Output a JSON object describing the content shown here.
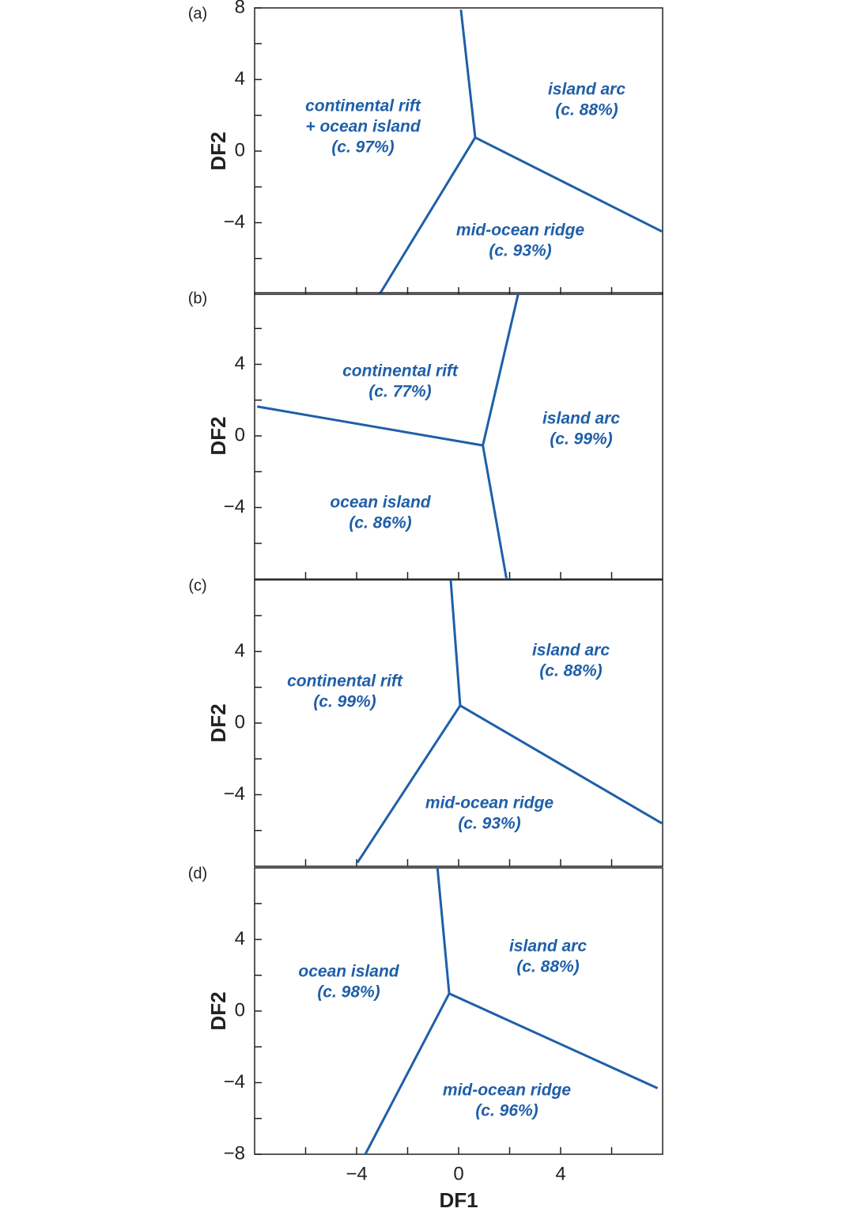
{
  "chart_data": [
    {
      "type": "line",
      "title": "(a)",
      "ylabel": "DF2",
      "color": "#1f5fa8",
      "xlim": [
        -8,
        8
      ],
      "ylim": [
        -8,
        8
      ],
      "xtickmarks": [
        -6,
        -4,
        -2,
        0,
        2,
        4,
        6
      ],
      "yticks": [
        8,
        4,
        0,
        {
          "value": -4,
          "label": "−4"
        }
      ],
      "ytickmarks": [
        -6,
        -2,
        2,
        6
      ],
      "lines": [
        {
          "x": [
            0.65,
            0.09
          ],
          "y": [
            0.76,
            7.9
          ]
        },
        {
          "x": [
            0.65,
            7.97
          ],
          "y": [
            0.76,
            -4.49
          ]
        },
        {
          "x": [
            0.65,
            -3.1
          ],
          "y": [
            0.76,
            -8
          ]
        }
      ],
      "regions": [
        [
          "continental rift",
          "+ ocean island",
          "(c. 97%)"
        ],
        [
          "island arc",
          "(c. 88%)"
        ],
        [
          "mid-ocean ridge",
          "(c. 93%)"
        ]
      ]
    },
    {
      "type": "line",
      "title": "(b)",
      "ylabel": "DF2",
      "color": "#1f5fa8",
      "xlim": [
        -8,
        8
      ],
      "ylim": [
        -8,
        8
      ],
      "xtickmarks": [
        -6,
        -4,
        -2,
        0,
        2,
        4,
        6
      ],
      "yticks": [
        4,
        0,
        {
          "value": -4,
          "label": "−4"
        }
      ],
      "ytickmarks": [
        -6,
        -2,
        2,
        6
      ],
      "lines": [
        {
          "x": [
            0.95,
            2.34
          ],
          "y": [
            -0.53,
            7.96
          ]
        },
        {
          "x": [
            0.95,
            -7.9
          ],
          "y": [
            -0.53,
            1.64
          ]
        },
        {
          "x": [
            0.95,
            1.88
          ],
          "y": [
            -0.53,
            -8
          ]
        }
      ],
      "regions": [
        [
          "continental rift",
          "(c. 77%)"
        ],
        [
          "island arc",
          "(c. 99%)"
        ],
        [
          "ocean island",
          "(c. 86%)"
        ]
      ]
    },
    {
      "type": "line",
      "title": "(c)",
      "ylabel": "DF2",
      "color": "#1f5fa8",
      "xlim": [
        -8,
        8
      ],
      "ylim": [
        -8,
        8
      ],
      "xtickmarks": [
        -6,
        -4,
        -2,
        0,
        2,
        4,
        6
      ],
      "yticks": [
        4,
        0,
        {
          "value": -4,
          "label": "−4"
        }
      ],
      "ytickmarks": [
        -6,
        -2,
        2,
        6
      ],
      "lines": [
        {
          "x": [
            0.06,
            -0.31
          ],
          "y": [
            0.98,
            8
          ]
        },
        {
          "x": [
            0.06,
            7.97
          ],
          "y": [
            0.98,
            -5.6
          ]
        },
        {
          "x": [
            0.06,
            -3.97
          ],
          "y": [
            0.98,
            -7.8
          ]
        }
      ],
      "regions": [
        [
          "continental rift",
          "(c. 99%)"
        ],
        [
          "island arc",
          "(c. 88%)"
        ],
        [
          "mid-ocean ridge",
          "(c. 93%)"
        ]
      ]
    },
    {
      "type": "line",
      "title": "(d)",
      "ylabel": "DF2",
      "xlabel": "DF1",
      "color": "#1f5fa8",
      "xlim": [
        -8,
        8
      ],
      "ylim": [
        -8,
        8
      ],
      "xticks": [
        {
          "value": -4,
          "label": "−4"
        },
        0,
        4
      ],
      "xtickmarks": [
        -6,
        -2,
        2,
        6
      ],
      "yticks": [
        4,
        0,
        {
          "value": -4,
          "label": "−4"
        },
        {
          "value": -8,
          "label": "−8"
        }
      ],
      "ytickmarks": [
        -6,
        -2,
        2,
        6
      ],
      "lines": [
        {
          "x": [
            -0.37,
            -0.83
          ],
          "y": [
            0.98,
            8
          ]
        },
        {
          "x": [
            -0.37,
            7.8
          ],
          "y": [
            0.98,
            -4.31
          ]
        },
        {
          "x": [
            -0.37,
            -3.66
          ],
          "y": [
            0.98,
            -8
          ]
        }
      ],
      "regions": [
        [
          "ocean island",
          "(c. 98%)"
        ],
        [
          "island arc",
          "(c. 88%)"
        ],
        [
          "mid-ocean ridge",
          "(c. 96%)"
        ]
      ]
    }
  ]
}
